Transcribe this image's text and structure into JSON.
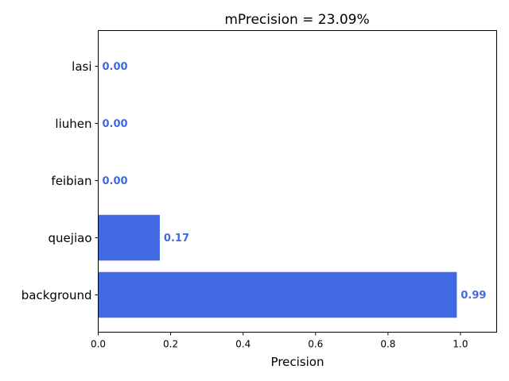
{
  "chart_data": {
    "type": "bar",
    "orientation": "horizontal",
    "title": "mPrecision = 23.09%",
    "xlabel": "Precision",
    "ylabel": "",
    "categories": [
      "background",
      "quejiao",
      "feibian",
      "liuhen",
      "lasi"
    ],
    "values": [
      0.99,
      0.17,
      0.0,
      0.0,
      0.0
    ],
    "value_labels": [
      "0.99",
      "0.17",
      "0.00",
      "0.00",
      "0.00"
    ],
    "xlim": [
      0,
      1.1
    ],
    "xticks": [
      0.0,
      0.2,
      0.4,
      0.6,
      0.8,
      1.0
    ],
    "xtick_labels": [
      "0.0",
      "0.2",
      "0.4",
      "0.6",
      "0.8",
      "1.0"
    ],
    "grid": false,
    "legend": "none",
    "bar_color": "#4169e1",
    "label_color": "#4169e1"
  }
}
